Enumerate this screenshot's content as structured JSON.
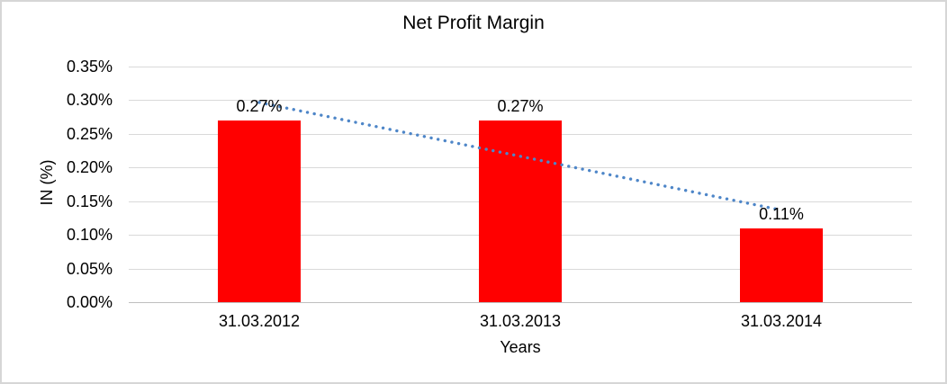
{
  "window": {
    "background": "#FFFFFF",
    "border_color": "#D6D6D6"
  },
  "chart_data": {
    "type": "bar",
    "title": "Net Profit Margin",
    "xlabel": "Years",
    "ylabel": "IN (%)",
    "categories": [
      "31.03.2012",
      "31.03.2013",
      "31.03.2014"
    ],
    "series": [
      {
        "name": "Net Profit Margin",
        "values": [
          0.27,
          0.27,
          0.11
        ],
        "data_labels": [
          "0.27%",
          "0.27%",
          "0.11%"
        ],
        "color": "#FF0000"
      }
    ],
    "y_axis": {
      "tick_labels": [
        "0.35%",
        "0.30%",
        "0.25%",
        "0.20%",
        "0.15%",
        "0.10%",
        "0.05%",
        "0.00%"
      ],
      "tick_values": [
        0.35,
        0.3,
        0.25,
        0.2,
        0.15,
        0.1,
        0.05,
        0.0
      ],
      "min": 0,
      "max": 0.35
    },
    "grid": true,
    "legend": "none",
    "trendline": {
      "style": "dotted",
      "color": "#4E86C8",
      "points": [
        {
          "category_index": 0,
          "value": 0.2967
        },
        {
          "category_index": 2,
          "value": 0.1367
        }
      ]
    },
    "colors": {
      "bar": "#FF0000",
      "gridline": "#D9D9D9",
      "axis_line": "#BFBFBF",
      "text": "#000000",
      "trendline": "#4E86C8"
    }
  }
}
